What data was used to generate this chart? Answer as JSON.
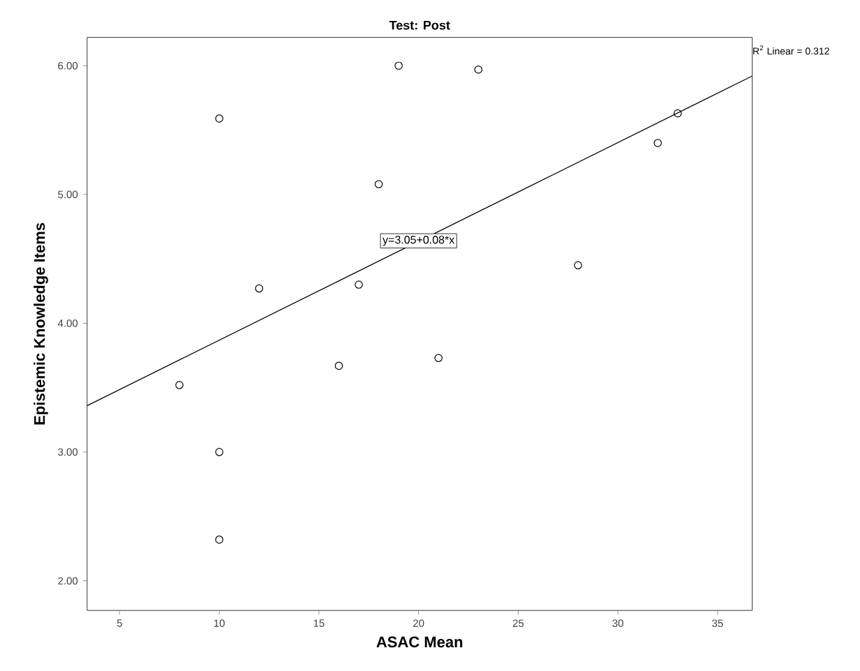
{
  "chart_data": {
    "type": "scatter",
    "title": "Test: Post",
    "xlabel": "ASAC Mean",
    "ylabel": "Epistemic Knowledge Items",
    "x": [
      10,
      12,
      17,
      18,
      19,
      23,
      28,
      32,
      33,
      8,
      10,
      10,
      16,
      21
    ],
    "series": [
      {
        "color": "#000000",
        "marker": "circle",
        "values": [
          5.59,
          4.27,
          4.3,
          5.08,
          6.0,
          5.97,
          4.45,
          5.4,
          5.63,
          3.52,
          3.0,
          2.32,
          3.67,
          3.73
        ]
      },
      {
        "type": "line",
        "marker": "none",
        "color": "#000000",
        "x": [
          3.37,
          36.74
        ],
        "values": [
          3.36,
          5.92
        ]
      }
    ],
    "xlim": [
      3.37,
      36.74
    ],
    "ylim": [
      1.77,
      6.22
    ],
    "xticks": [
      5,
      10,
      15,
      20,
      25,
      30,
      35
    ],
    "yticks": [
      {
        "value": 2,
        "label": "2.00"
      },
      {
        "value": 3,
        "label": "3.00"
      },
      {
        "value": 4,
        "label": "4.00"
      },
      {
        "value": 5,
        "label": "5.00"
      },
      {
        "value": 6,
        "label": "6.00"
      }
    ],
    "annotations": [
      {
        "text": "y=3.05+0.08*x",
        "x": 20,
        "y": 4.64
      },
      "R$^{2}$ Linear = 0.312"
    ]
  }
}
